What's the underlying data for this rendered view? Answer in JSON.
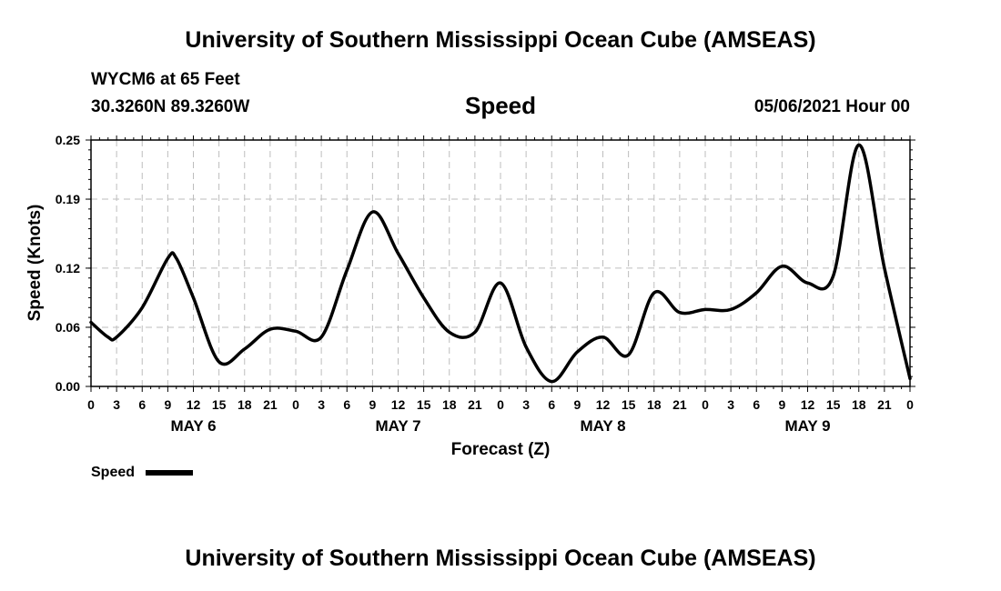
{
  "header": {
    "title_top": "University of Southern Mississippi Ocean Cube (AMSEAS)",
    "station": "WYCM6 at 65 Feet",
    "location": "30.3260N  89.3260W",
    "variable": "Speed",
    "date": "05/06/2021 Hour 00"
  },
  "footer": {
    "title_bottom": "University of Southern Mississippi Ocean Cube (AMSEAS)"
  },
  "legend": {
    "label": "Speed",
    "color": "#000000"
  },
  "chart_data": {
    "type": "line",
    "title": "Speed",
    "xlabel": "Forecast (Z)",
    "ylabel": "Speed (Knots)",
    "ylim": [
      0,
      0.25
    ],
    "xlim": [
      0,
      96
    ],
    "yticks": [
      0.0,
      0.06,
      0.12,
      0.19,
      0.25
    ],
    "ytick_labels": [
      "0.00",
      "0.06",
      "0.12",
      "0.19",
      "0.25"
    ],
    "x_tick_hours": [
      0,
      3,
      6,
      9,
      12,
      15,
      18,
      21,
      24,
      27,
      30,
      33,
      36,
      39,
      42,
      45,
      48,
      51,
      54,
      57,
      60,
      63,
      66,
      69,
      72,
      75,
      78,
      81,
      84,
      87,
      90,
      93,
      96
    ],
    "x_tick_labels": [
      "0",
      "3",
      "6",
      "9",
      "12",
      "15",
      "18",
      "21",
      "0",
      "3",
      "6",
      "9",
      "12",
      "15",
      "18",
      "21",
      "0",
      "3",
      "6",
      "9",
      "12",
      "15",
      "18",
      "21",
      "0",
      "3",
      "6",
      "9",
      "12",
      "15",
      "18",
      "21",
      "0"
    ],
    "day_labels": [
      {
        "label": "MAY 6",
        "hour": 12
      },
      {
        "label": "MAY 7",
        "hour": 36
      },
      {
        "label": "MAY 8",
        "hour": 60
      },
      {
        "label": "MAY 9",
        "hour": 84
      }
    ],
    "grid": true,
    "line_color": "#000000",
    "series": [
      {
        "name": "Speed",
        "x": [
          0,
          2,
          3,
          6,
          9,
          10,
          12,
          15,
          18,
          21,
          24,
          27,
          30,
          33,
          36,
          39,
          42,
          45,
          48,
          51,
          54,
          57,
          60,
          63,
          66,
          69,
          72,
          75,
          78,
          81,
          84,
          87,
          90,
          93,
          96
        ],
        "values": [
          0.065,
          0.05,
          0.05,
          0.08,
          0.13,
          0.13,
          0.09,
          0.025,
          0.038,
          0.058,
          0.056,
          0.05,
          0.118,
          0.177,
          0.135,
          0.09,
          0.055,
          0.055,
          0.105,
          0.04,
          0.005,
          0.035,
          0.05,
          0.032,
          0.095,
          0.075,
          0.078,
          0.078,
          0.095,
          0.122,
          0.105,
          0.112,
          0.245,
          0.12,
          0.008
        ]
      }
    ]
  }
}
